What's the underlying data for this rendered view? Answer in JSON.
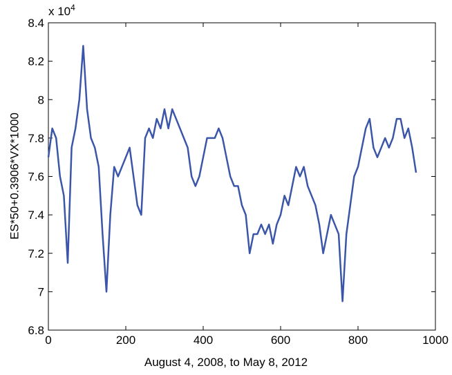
{
  "chart_data": {
    "type": "line",
    "x_label": "August 4, 2008, to May 8, 2012",
    "y_label": "ES*50+0.3906*VX*1000",
    "y_multiplier": "x 10",
    "y_multiplier_exponent": "4",
    "xlim": [
      0,
      1000
    ],
    "xticks": [
      0,
      200,
      400,
      600,
      800,
      1000
    ],
    "ylim": [
      6.8,
      8.4
    ],
    "yticks": [
      6.8,
      7,
      7.2,
      7.4,
      7.6,
      7.8,
      8,
      8.2,
      8.4
    ],
    "grid": false,
    "series": [
      {
        "color": "#3b55a9",
        "x": [
          0,
          10,
          20,
          30,
          40,
          50,
          60,
          70,
          80,
          90,
          100,
          110,
          120,
          130,
          140,
          150,
          160,
          170,
          180,
          190,
          200,
          210,
          220,
          230,
          240,
          250,
          260,
          270,
          280,
          290,
          300,
          310,
          320,
          330,
          340,
          350,
          360,
          370,
          380,
          390,
          400,
          410,
          420,
          430,
          440,
          450,
          460,
          470,
          480,
          490,
          500,
          510,
          520,
          530,
          540,
          550,
          560,
          570,
          580,
          590,
          600,
          610,
          620,
          630,
          640,
          650,
          660,
          670,
          680,
          690,
          700,
          710,
          720,
          730,
          740,
          750,
          760,
          770,
          780,
          790,
          800,
          810,
          820,
          830,
          840,
          850,
          860,
          870,
          880,
          890,
          900,
          910,
          920,
          930,
          940,
          950
        ],
        "values": [
          7.7,
          7.85,
          7.8,
          7.6,
          7.5,
          7.15,
          7.75,
          7.85,
          8.0,
          8.28,
          7.95,
          7.8,
          7.75,
          7.65,
          7.3,
          7.0,
          7.4,
          7.65,
          7.6,
          7.65,
          7.7,
          7.75,
          7.6,
          7.45,
          7.4,
          7.8,
          7.85,
          7.8,
          7.9,
          7.85,
          7.95,
          7.85,
          7.95,
          7.9,
          7.85,
          7.8,
          7.75,
          7.6,
          7.55,
          7.6,
          7.7,
          7.8,
          7.8,
          7.8,
          7.85,
          7.8,
          7.7,
          7.6,
          7.55,
          7.55,
          7.45,
          7.4,
          7.2,
          7.3,
          7.3,
          7.35,
          7.3,
          7.35,
          7.25,
          7.35,
          7.4,
          7.5,
          7.45,
          7.55,
          7.65,
          7.6,
          7.65,
          7.55,
          7.5,
          7.45,
          7.35,
          7.2,
          7.3,
          7.4,
          7.35,
          7.3,
          6.95,
          7.3,
          7.45,
          7.6,
          7.65,
          7.75,
          7.85,
          7.9,
          7.75,
          7.7,
          7.75,
          7.8,
          7.75,
          7.8,
          7.9,
          7.9,
          7.8,
          7.85,
          7.75,
          7.62
        ]
      }
    ]
  }
}
